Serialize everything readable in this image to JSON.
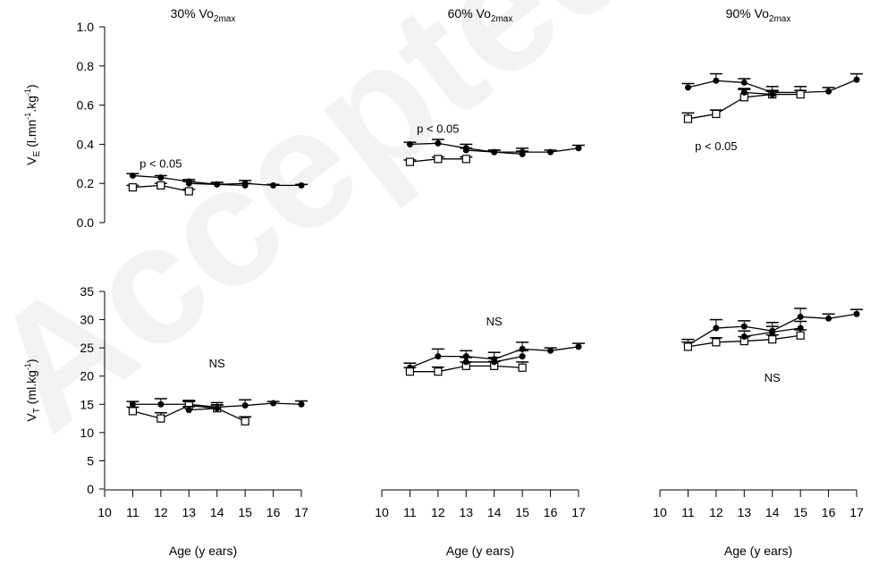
{
  "watermark_text": "Accepted",
  "chart_data": [
    {
      "type": "line",
      "panel": "top-left",
      "title_main": "30% Vo",
      "title_sub": "2max",
      "ylabel_main": "V",
      "ylabel_sub": "E",
      "ylabel_rest_a": " (l.mn",
      "ylabel_sup_a": "-1",
      "ylabel_rest_b": ".kg",
      "ylabel_sup_b": "-1",
      "ylabel_rest_c": ")",
      "ylim": [
        0,
        1.0
      ],
      "yticks": [
        "0.0",
        "0.2",
        "0.4",
        "0.6",
        "0.8",
        "1.0"
      ],
      "annotation": "p < 0.05",
      "annotation_pos": {
        "x": 12,
        "y": 0.28
      },
      "series": [
        {
          "marker": "filled",
          "x": [
            11,
            12,
            13,
            14,
            15,
            16,
            17
          ],
          "values": [
            0.24,
            0.23,
            0.21,
            0.195,
            0.2,
            0.19,
            0.19
          ],
          "err": [
            0.01,
            0.01,
            0.01,
            0.01,
            0.015,
            0.005,
            0.005
          ]
        },
        {
          "marker": "open",
          "x": [
            11,
            12,
            13
          ],
          "values": [
            0.18,
            0.19,
            0.16
          ],
          "err": [
            0.01,
            0.01,
            0.01
          ]
        },
        {
          "marker": "filled",
          "x": [
            13,
            14,
            15
          ],
          "values": [
            0.2,
            0.195,
            0.19
          ],
          "err": [
            0.01,
            0.01,
            0.01
          ]
        }
      ]
    },
    {
      "type": "line",
      "panel": "top-middle",
      "title_main": "60% Vo",
      "title_sub": "2max",
      "ylim": [
        0,
        1.0
      ],
      "annotation": "p < 0.05",
      "annotation_pos": {
        "x": 12,
        "y": 0.46
      },
      "series": [
        {
          "marker": "filled",
          "x": [
            11,
            12,
            13,
            14,
            15,
            16,
            17
          ],
          "values": [
            0.4,
            0.405,
            0.38,
            0.36,
            0.36,
            0.36,
            0.38
          ],
          "err": [
            0.01,
            0.02,
            0.02,
            0.01,
            0.02,
            0.01,
            0.015
          ]
        },
        {
          "marker": "open",
          "x": [
            11,
            12,
            13
          ],
          "values": [
            0.31,
            0.325,
            0.325
          ],
          "err": [
            0.01,
            0.01,
            0.01
          ]
        },
        {
          "marker": "filled",
          "x": [
            13,
            14,
            15
          ],
          "values": [
            0.37,
            0.36,
            0.35
          ],
          "err": [
            0.01,
            0.01,
            0.015
          ]
        }
      ]
    },
    {
      "type": "line",
      "panel": "top-right",
      "title_main": "90% Vo",
      "title_sub": "2max",
      "ylim": [
        0,
        1.0
      ],
      "annotation": "p < 0.05",
      "annotation_pos": {
        "x": 12,
        "y": 0.37
      },
      "series": [
        {
          "marker": "filled",
          "x": [
            11,
            12,
            13,
            14,
            15,
            16,
            17
          ],
          "values": [
            0.69,
            0.725,
            0.715,
            0.665,
            0.665,
            0.67,
            0.73
          ],
          "err": [
            0.02,
            0.035,
            0.02,
            0.03,
            0.03,
            0.02,
            0.03
          ]
        },
        {
          "marker": "open",
          "x": [
            11,
            12,
            13,
            14,
            15
          ],
          "values": [
            0.53,
            0.555,
            0.64,
            0.655,
            0.655
          ],
          "err": [
            0.03,
            0.02,
            0.04,
            0.02,
            0.02
          ]
        },
        {
          "marker": "filled",
          "x": [
            13,
            14
          ],
          "values": [
            0.665,
            0.655
          ],
          "err": [
            0.02,
            0.015
          ]
        }
      ]
    },
    {
      "type": "line",
      "panel": "bottom-left",
      "ylabel_main": "V",
      "ylabel_sub": "T",
      "ylabel_rest_a": " (ml.kg",
      "ylabel_sup_a": "-1",
      "ylabel_rest_b": ")",
      "ylim": [
        0,
        35
      ],
      "yticks": [
        "0",
        "5",
        "10",
        "15",
        "20",
        "25",
        "30",
        "35"
      ],
      "xlabel": "Age (y ears)",
      "xticks": [
        "10",
        "11",
        "12",
        "13",
        "14",
        "15",
        "16",
        "17"
      ],
      "annotation": "NS",
      "annotation_pos": {
        "x": 14,
        "y": 21.5
      },
      "series": [
        {
          "marker": "filled",
          "x": [
            11,
            12,
            13,
            14,
            15,
            16,
            17
          ],
          "values": [
            15,
            15,
            15,
            14.5,
            14.8,
            15.2,
            15
          ],
          "err": [
            0.5,
            1.0,
            0.7,
            0.8,
            1.0,
            0.3,
            0.6
          ]
        },
        {
          "marker": "open",
          "x": [
            11,
            12,
            13,
            14,
            15
          ],
          "values": [
            13.8,
            12.5,
            14.8,
            14.3,
            12.0
          ],
          "err": [
            0.7,
            1.0,
            0.7,
            0.6,
            0.8
          ]
        },
        {
          "marker": "filled",
          "x": [
            13,
            14
          ],
          "values": [
            14,
            14.3
          ],
          "err": [
            0.6,
            0.6
          ]
        }
      ]
    },
    {
      "type": "line",
      "panel": "bottom-middle",
      "ylim": [
        0,
        35
      ],
      "xlabel": "Age (y ears)",
      "xticks": [
        "10",
        "11",
        "12",
        "13",
        "14",
        "15",
        "16",
        "17"
      ],
      "annotation": "NS",
      "annotation_pos": {
        "x": 14,
        "y": 29
      },
      "series": [
        {
          "marker": "filled",
          "x": [
            11,
            12,
            13,
            14,
            15,
            16,
            17
          ],
          "values": [
            21.5,
            23.5,
            23.5,
            23,
            24.8,
            24.5,
            25.2
          ],
          "err": [
            0.8,
            1.3,
            1.0,
            1.2,
            1.2,
            0.5,
            0.6
          ]
        },
        {
          "marker": "open",
          "x": [
            11,
            12,
            13,
            14,
            15
          ],
          "values": [
            20.8,
            20.8,
            21.8,
            21.8,
            21.5
          ],
          "err": [
            0.7,
            0.8,
            0.7,
            0.8,
            1.0
          ]
        },
        {
          "marker": "filled",
          "x": [
            13,
            14,
            15
          ],
          "values": [
            22.5,
            22.5,
            23.5
          ],
          "err": [
            0.8,
            0.8,
            1.0
          ]
        }
      ]
    },
    {
      "type": "line",
      "panel": "bottom-right",
      "ylim": [
        0,
        35
      ],
      "xlabel": "Age (y ears)",
      "xticks": [
        "10",
        "11",
        "12",
        "13",
        "14",
        "15",
        "16",
        "17"
      ],
      "annotation": "NS",
      "annotation_pos": {
        "x": 14,
        "y": 19
      },
      "series": [
        {
          "marker": "filled",
          "x": [
            11,
            12,
            13,
            14,
            15,
            16,
            17
          ],
          "values": [
            25.5,
            28.5,
            28.8,
            28,
            30.5,
            30.2,
            31
          ],
          "err": [
            1.0,
            1.5,
            1.0,
            1.5,
            1.5,
            0.8,
            0.8
          ]
        },
        {
          "marker": "open",
          "x": [
            11,
            12,
            13,
            14,
            15
          ],
          "values": [
            25.2,
            26,
            26.2,
            26.5,
            27.2
          ],
          "err": [
            0.8,
            0.8,
            0.8,
            0.8,
            1.0
          ]
        },
        {
          "marker": "filled",
          "x": [
            13,
            14,
            15
          ],
          "values": [
            27,
            27.8,
            28.5
          ],
          "err": [
            1.0,
            1.0,
            1.2
          ]
        }
      ]
    }
  ]
}
